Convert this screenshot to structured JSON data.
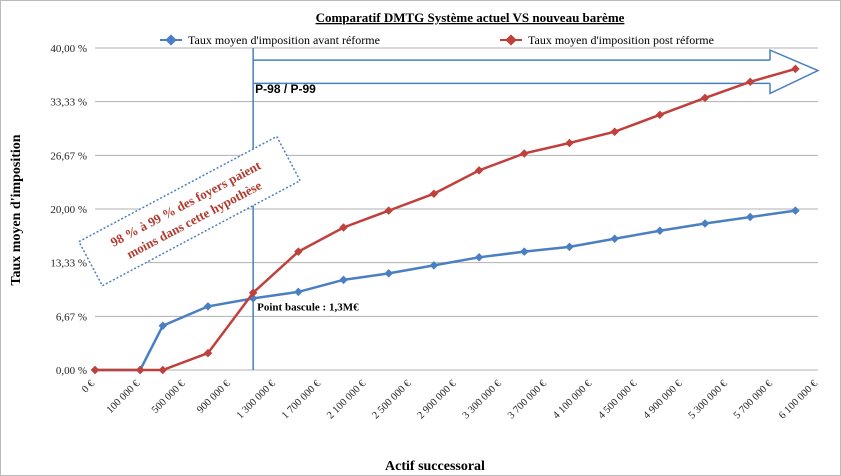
{
  "chart_data": {
    "type": "line",
    "title": "Comparatif DMTG Système actuel VS nouveau barème",
    "xlabel": "Actif successoral",
    "ylabel": "Taux moyen d'imposition",
    "categories": [
      "0 €",
      "100 000 €",
      "500 000 €",
      "900 000 €",
      "1 300 000 €",
      "1 700 000 €",
      "2 100 000 €",
      "2 500 000 €",
      "2 900 000 €",
      "3 300 000 €",
      "3 700 000 €",
      "4 100 000 €",
      "4 500 000 €",
      "4 900 000 €",
      "5 300 000 €",
      "5 700 000 €",
      "6 100 000 €"
    ],
    "yticks": [
      "0,00 %",
      "6,67 %",
      "13,33 %",
      "20,00 %",
      "26,67 %",
      "33,33 %",
      "40,00 %"
    ],
    "ylim": [
      0,
      40
    ],
    "grid": "horizontal",
    "legend_position": "top",
    "series": [
      {
        "name": "Taux moyen d'imposition avant réforme",
        "color": "#4a7fc1",
        "points": [
          {
            "x": 0,
            "y": 0
          },
          {
            "x": 1,
            "y": 0
          },
          {
            "x": 1.5,
            "y": 5.5
          },
          {
            "x": 2.5,
            "y": 7.9
          },
          {
            "x": 3.5,
            "y": 8.9
          },
          {
            "x": 4.5,
            "y": 9.7
          },
          {
            "x": 5.5,
            "y": 11.2
          },
          {
            "x": 6.5,
            "y": 12.0
          },
          {
            "x": 7.5,
            "y": 13.0
          },
          {
            "x": 8.5,
            "y": 14.0
          },
          {
            "x": 9.5,
            "y": 14.7
          },
          {
            "x": 10.5,
            "y": 15.3
          },
          {
            "x": 11.5,
            "y": 16.3
          },
          {
            "x": 12.5,
            "y": 17.3
          },
          {
            "x": 13.5,
            "y": 18.2
          },
          {
            "x": 14.5,
            "y": 19.0
          },
          {
            "x": 15.5,
            "y": 19.8
          }
        ]
      },
      {
        "name": "Taux moyen d'imposition post réforme",
        "color": "#c0403c",
        "points": [
          {
            "x": 0,
            "y": 0
          },
          {
            "x": 1,
            "y": 0
          },
          {
            "x": 1.5,
            "y": 0
          },
          {
            "x": 2.5,
            "y": 2.1
          },
          {
            "x": 3.5,
            "y": 9.6
          },
          {
            "x": 4.5,
            "y": 14.7
          },
          {
            "x": 5.5,
            "y": 17.7
          },
          {
            "x": 6.5,
            "y": 19.8
          },
          {
            "x": 7.5,
            "y": 21.9
          },
          {
            "x": 8.5,
            "y": 24.8
          },
          {
            "x": 9.5,
            "y": 26.9
          },
          {
            "x": 10.5,
            "y": 28.2
          },
          {
            "x": 11.5,
            "y": 29.6
          },
          {
            "x": 12.5,
            "y": 31.7
          },
          {
            "x": 13.5,
            "y": 33.8
          },
          {
            "x": 14.5,
            "y": 35.8
          },
          {
            "x": 15.5,
            "y": 37.4
          }
        ]
      }
    ],
    "annotations": {
      "range_label": "P-98 / P-99",
      "pivot_label": "Point bascule : 1,3M€",
      "pivot_x": 3.5,
      "callout_line1": "98 % à 99 % des foyers paient",
      "callout_line2": "moins dans cette hypothèse"
    }
  }
}
